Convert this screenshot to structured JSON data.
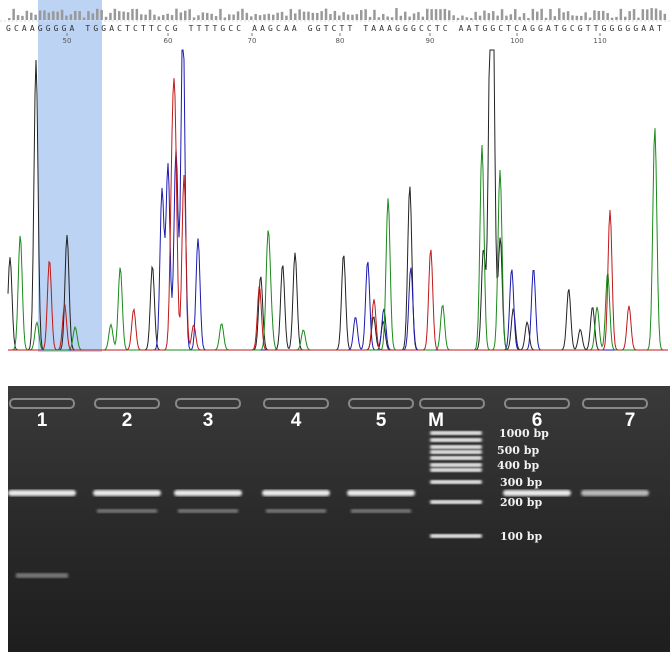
{
  "chromatogram": {
    "sequence": "GCAAGGGGA TGGACTCTTCCG TTTTGCC AAGCAA GGTCTT TAAAGGGCCTC AATGGCTCAGGATGCGTTGGGGGAAT",
    "positions": [
      "50",
      "60",
      "70",
      "80",
      "90",
      "100",
      "110"
    ]
  },
  "gel": {
    "lanes": [
      "1",
      "2",
      "3",
      "4",
      "5",
      "M",
      "6",
      "7"
    ],
    "marker": [
      "1000 bp",
      "500 bp",
      "400 bp",
      "300 bp",
      "200 bp",
      "100 bp"
    ]
  }
}
